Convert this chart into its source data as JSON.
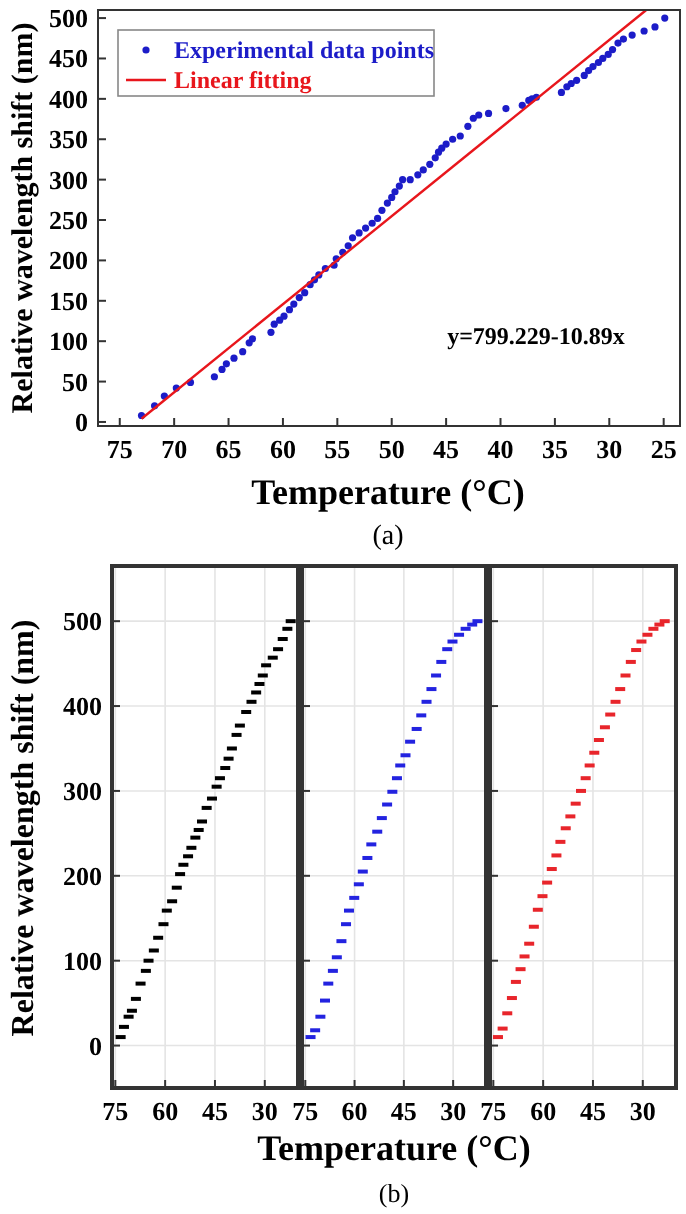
{
  "chart_data": [
    {
      "type": "scatter",
      "xlabel": "Temperature (°C)",
      "ylabel": "Relative wavelength shift (nm)",
      "xlim": [
        77,
        23.5
      ],
      "ylim": [
        -5,
        510
      ],
      "xticks": [
        75,
        70,
        65,
        60,
        55,
        50,
        45,
        40,
        35,
        30,
        25
      ],
      "yticks": [
        0,
        50,
        100,
        150,
        200,
        250,
        300,
        350,
        400,
        450,
        500
      ],
      "legend": "top left",
      "annotations": [
        "y=799.229-10.89x",
        "(a)"
      ],
      "series": [
        {
          "name": "Experimental data points",
          "color": "#1c1cc8",
          "marker": "circle",
          "x": [
            73.0,
            71.8,
            70.9,
            69.8,
            68.5,
            66.3,
            65.6,
            65.2,
            64.5,
            63.7,
            63.1,
            62.8,
            61.1,
            60.8,
            60.3,
            59.9,
            59.4,
            59.0,
            58.5,
            58.0,
            57.5,
            57.1,
            56.7,
            56.1,
            55.3,
            55.1,
            54.5,
            54.0,
            53.6,
            53.0,
            52.4,
            51.8,
            51.3,
            50.9,
            50.4,
            50.0,
            49.7,
            49.3,
            49.0,
            48.3,
            47.6,
            47.1,
            46.5,
            46.0,
            45.7,
            45.4,
            45.0,
            44.4,
            43.7,
            43.0,
            42.5,
            42.0,
            41.1,
            39.5,
            38.0,
            37.4,
            37.1,
            36.7,
            34.4,
            33.9,
            33.5,
            33.0,
            32.3,
            31.9,
            31.5,
            31.0,
            30.6,
            30.1,
            29.7,
            29.2,
            28.7,
            27.9,
            26.8,
            25.8,
            24.9
          ],
          "values": [
            8,
            20,
            32,
            42,
            49,
            56,
            65,
            72,
            79,
            87,
            98,
            103,
            111,
            121,
            126,
            131,
            139,
            146,
            154,
            160,
            170,
            176,
            182,
            190,
            194,
            202,
            210,
            218,
            228,
            234,
            240,
            246,
            252,
            262,
            271,
            278,
            285,
            292,
            300,
            300,
            306,
            312,
            319,
            327,
            334,
            339,
            344,
            350,
            354,
            366,
            376,
            380,
            382,
            388,
            392,
            398,
            400,
            402,
            408,
            415,
            419,
            423,
            429,
            435,
            440,
            445,
            450,
            455,
            461,
            469,
            474,
            479,
            484,
            489,
            500
          ]
        },
        {
          "type": "line",
          "name": "Linear fitting",
          "color": "#e8161c",
          "x": [
            73,
            26.6
          ],
          "values": [
            4,
            510
          ]
        }
      ]
    },
    {
      "type": "scatter",
      "ylabel": "Relative wavelength shift (nm)",
      "xlim": [
        76,
        20
      ],
      "ylim": [
        -50,
        565
      ],
      "xticks": [
        75,
        60,
        45,
        30
      ],
      "yticks": [
        0,
        100,
        200,
        300,
        400,
        500
      ],
      "grid": true,
      "series": [
        {
          "color": "#000000",
          "marker": "square",
          "x": [
            73.4,
            72.4,
            71.0,
            70.0,
            68.8,
            67.4,
            65.8,
            65.0,
            63.4,
            62.1,
            60.5,
            59.5,
            57.9,
            56.5,
            55.5,
            54.5,
            53.1,
            52.1,
            50.9,
            49.9,
            48.9,
            47.5,
            45.9,
            44.5,
            43.5,
            41.9,
            40.9,
            39.9,
            38.5,
            37.5,
            35.6,
            34.0,
            32.6,
            31.6,
            30.6,
            29.6,
            27.6,
            26.0,
            24.6,
            23.2,
            22.2
          ],
          "values": [
            10,
            22,
            34,
            41,
            55,
            73,
            88,
            100,
            112,
            127,
            143,
            159,
            170,
            186,
            202,
            213,
            223,
            233,
            245,
            254,
            264,
            280,
            291,
            305,
            315,
            327,
            338,
            350,
            366,
            377,
            393,
            405,
            416,
            426,
            436,
            448,
            457,
            467,
            479,
            491,
            500
          ]
        }
      ]
    },
    {
      "type": "scatter",
      "xlabel": "Temperature (°C)",
      "xlim": [
        76,
        20
      ],
      "ylim": [
        -50,
        565
      ],
      "xticks": [
        75,
        60,
        45,
        30
      ],
      "yticks": [
        0,
        100,
        200,
        300,
        400,
        500
      ],
      "tick_labels": "x",
      "grid": true,
      "annotations": [
        "(b)"
      ],
      "series": [
        {
          "color": "#2323e0",
          "marker": "square",
          "x": [
            73.4,
            72.0,
            70.4,
            69.0,
            68.0,
            66.6,
            65.4,
            64.0,
            62.6,
            61.7,
            60.1,
            58.7,
            57.5,
            56.1,
            54.9,
            53.1,
            51.7,
            50.1,
            48.5,
            47.1,
            46.1,
            44.5,
            43.1,
            41.1,
            39.7,
            38.1,
            36.6,
            35.2,
            33.6,
            31.8,
            30.2,
            28.2,
            26.2,
            24.2,
            22.6
          ],
          "values": [
            10,
            18,
            34,
            53,
            73,
            88,
            104,
            123,
            143,
            159,
            174,
            190,
            205,
            221,
            237,
            252,
            268,
            284,
            299,
            315,
            330,
            342,
            358,
            373,
            389,
            405,
            420,
            436,
            452,
            467,
            476,
            484,
            491,
            496,
            500
          ]
        }
      ]
    },
    {
      "type": "scatter",
      "xlim": [
        76,
        20
      ],
      "ylim": [
        -50,
        565
      ],
      "xticks": [
        75,
        60,
        45,
        30
      ],
      "yticks": [
        0,
        100,
        200,
        300,
        400,
        500
      ],
      "tick_labels": "x",
      "grid": true,
      "series": [
        {
          "color": "#e8252b",
          "marker": "square",
          "x": [
            73.6,
            72.2,
            70.8,
            69.4,
            68.2,
            66.8,
            65.6,
            64.2,
            62.8,
            61.6,
            60.2,
            58.8,
            57.4,
            56.0,
            54.8,
            53.2,
            51.8,
            50.2,
            48.6,
            47.2,
            46.0,
            44.6,
            43.2,
            41.4,
            39.8,
            38.2,
            36.8,
            35.2,
            33.6,
            32.0,
            30.4,
            28.6,
            26.8,
            25.0,
            23.4
          ],
          "values": [
            10,
            20,
            38,
            56,
            75,
            90,
            105,
            120,
            140,
            160,
            176,
            192,
            208,
            224,
            240,
            256,
            270,
            285,
            300,
            315,
            330,
            345,
            360,
            375,
            390,
            405,
            420,
            436,
            452,
            466,
            476,
            484,
            491,
            496,
            500
          ]
        }
      ]
    }
  ]
}
